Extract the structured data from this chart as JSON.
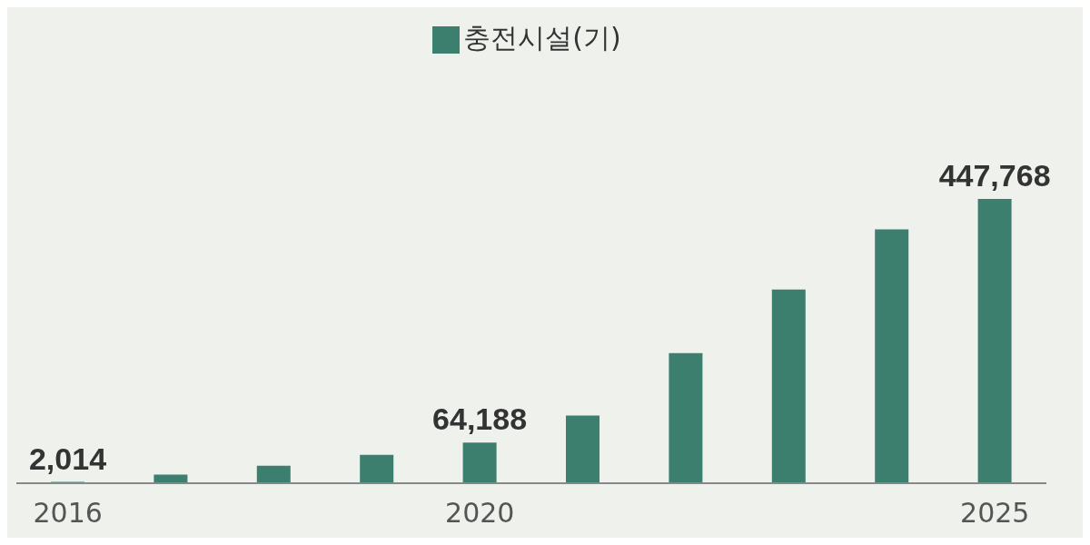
{
  "chart_data": {
    "type": "bar",
    "categories": [
      "2016",
      null,
      null,
      null,
      "2020",
      null,
      null,
      null,
      null,
      "2025"
    ],
    "series": [
      {
        "name": "충전시설(기)",
        "color": "#3d7f6e",
        "values": [
          2014,
          13700,
          27400,
          44800,
          64188,
          106700,
          205000,
          305000,
          400000,
          447768
        ],
        "value_labels": [
          "2,014",
          null,
          null,
          null,
          "64,188",
          null,
          null,
          null,
          null,
          "447,768"
        ]
      }
    ],
    "legend": "top",
    "grid": false
  }
}
